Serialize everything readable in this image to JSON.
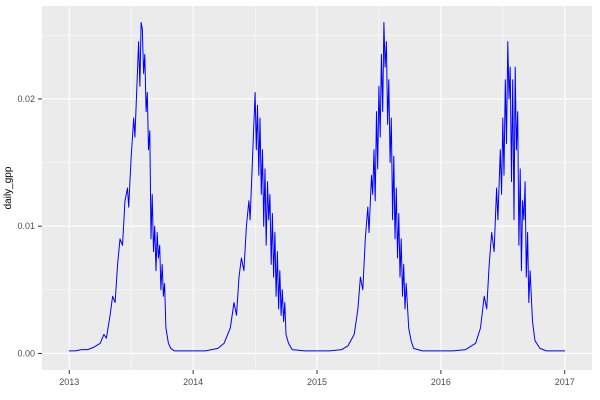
{
  "chart_data": {
    "type": "line",
    "title": "",
    "xlabel": "",
    "ylabel": "daily_gpp",
    "legend": "none",
    "grid": "on",
    "panel_bg": "#EBEBEB",
    "grid_color": "#FFFFFF",
    "line_color": "#0000FF",
    "tick_color": "#333333",
    "tick_label_color": "#4D4D4D",
    "xlim": [
      2012.78,
      2017.22
    ],
    "ylim": [
      -0.0013,
      0.0273
    ],
    "x_ticks": [
      2013,
      2014,
      2015,
      2016,
      2017
    ],
    "x_tick_labels": [
      "2013",
      "2014",
      "2015",
      "2016",
      "2017"
    ],
    "x_minor_ticks": [
      2013.5,
      2014.5,
      2015.5,
      2016.5
    ],
    "y_ticks": [
      0.0,
      0.01,
      0.02
    ],
    "y_tick_labels": [
      "0.00",
      "0.01",
      "0.02"
    ],
    "y_minor_ticks": [
      0.005,
      0.015,
      0.025
    ],
    "series": [
      {
        "name": "daily_gpp",
        "points": [
          [
            2013.0,
            0.0002
          ],
          [
            2013.05,
            0.0002
          ],
          [
            2013.1,
            0.0003
          ],
          [
            2013.15,
            0.0003
          ],
          [
            2013.2,
            0.0005
          ],
          [
            2013.25,
            0.0008
          ],
          [
            2013.28,
            0.0015
          ],
          [
            2013.3,
            0.0012
          ],
          [
            2013.33,
            0.003
          ],
          [
            2013.35,
            0.0045
          ],
          [
            2013.37,
            0.004
          ],
          [
            2013.39,
            0.007
          ],
          [
            2013.41,
            0.009
          ],
          [
            2013.43,
            0.0085
          ],
          [
            2013.45,
            0.012
          ],
          [
            2013.47,
            0.013
          ],
          [
            2013.48,
            0.0115
          ],
          [
            2013.5,
            0.0155
          ],
          [
            2013.52,
            0.0185
          ],
          [
            2013.53,
            0.017
          ],
          [
            2013.55,
            0.022
          ],
          [
            2013.56,
            0.0245
          ],
          [
            2013.57,
            0.021
          ],
          [
            2013.58,
            0.026
          ],
          [
            2013.59,
            0.0255
          ],
          [
            2013.6,
            0.022
          ],
          [
            2013.61,
            0.0235
          ],
          [
            2013.62,
            0.019
          ],
          [
            2013.63,
            0.0205
          ],
          [
            2013.64,
            0.016
          ],
          [
            2013.65,
            0.0175
          ],
          [
            2013.66,
            0.009
          ],
          [
            2013.67,
            0.0125
          ],
          [
            2013.68,
            0.008
          ],
          [
            2013.69,
            0.01
          ],
          [
            2013.7,
            0.0065
          ],
          [
            2013.71,
            0.0095
          ],
          [
            2013.72,
            0.0075
          ],
          [
            2013.73,
            0.0085
          ],
          [
            2013.74,
            0.005
          ],
          [
            2013.75,
            0.007
          ],
          [
            2013.76,
            0.0045
          ],
          [
            2013.77,
            0.0055
          ],
          [
            2013.78,
            0.002
          ],
          [
            2013.8,
            0.0008
          ],
          [
            2013.82,
            0.0004
          ],
          [
            2013.85,
            0.0002
          ],
          [
            2013.9,
            0.0002
          ],
          [
            2013.95,
            0.0002
          ],
          [
            2014.0,
            0.0002
          ],
          [
            2014.1,
            0.0002
          ],
          [
            2014.2,
            0.0004
          ],
          [
            2014.25,
            0.0008
          ],
          [
            2014.3,
            0.002
          ],
          [
            2014.33,
            0.004
          ],
          [
            2014.35,
            0.003
          ],
          [
            2014.37,
            0.006
          ],
          [
            2014.39,
            0.0075
          ],
          [
            2014.41,
            0.0065
          ],
          [
            2014.43,
            0.01
          ],
          [
            2014.45,
            0.012
          ],
          [
            2014.46,
            0.0105
          ],
          [
            2014.48,
            0.0155
          ],
          [
            2014.5,
            0.0205
          ],
          [
            2014.51,
            0.016
          ],
          [
            2014.52,
            0.0195
          ],
          [
            2014.53,
            0.014
          ],
          [
            2014.54,
            0.0185
          ],
          [
            2014.55,
            0.0125
          ],
          [
            2014.56,
            0.016
          ],
          [
            2014.57,
            0.01
          ],
          [
            2014.58,
            0.0145
          ],
          [
            2014.59,
            0.0085
          ],
          [
            2014.6,
            0.0135
          ],
          [
            2014.61,
            0.0105
          ],
          [
            2014.62,
            0.0125
          ],
          [
            2014.63,
            0.007
          ],
          [
            2014.64,
            0.011
          ],
          [
            2014.65,
            0.006
          ],
          [
            2014.66,
            0.0095
          ],
          [
            2014.67,
            0.0045
          ],
          [
            2014.68,
            0.008
          ],
          [
            2014.69,
            0.0035
          ],
          [
            2014.7,
            0.0065
          ],
          [
            2014.71,
            0.003
          ],
          [
            2014.72,
            0.005
          ],
          [
            2014.73,
            0.0025
          ],
          [
            2014.74,
            0.004
          ],
          [
            2014.75,
            0.0015
          ],
          [
            2014.77,
            0.0008
          ],
          [
            2014.8,
            0.0003
          ],
          [
            2014.9,
            0.0002
          ],
          [
            2015.0,
            0.0002
          ],
          [
            2015.1,
            0.0002
          ],
          [
            2015.2,
            0.0003
          ],
          [
            2015.25,
            0.0006
          ],
          [
            2015.3,
            0.0015
          ],
          [
            2015.33,
            0.0035
          ],
          [
            2015.35,
            0.006
          ],
          [
            2015.37,
            0.005
          ],
          [
            2015.39,
            0.009
          ],
          [
            2015.41,
            0.0115
          ],
          [
            2015.42,
            0.0095
          ],
          [
            2015.44,
            0.014
          ],
          [
            2015.45,
            0.0125
          ],
          [
            2015.46,
            0.016
          ],
          [
            2015.47,
            0.012
          ],
          [
            2015.48,
            0.019
          ],
          [
            2015.49,
            0.0145
          ],
          [
            2015.5,
            0.021
          ],
          [
            2015.51,
            0.017
          ],
          [
            2015.52,
            0.0235
          ],
          [
            2015.53,
            0.019
          ],
          [
            2015.54,
            0.026
          ],
          [
            2015.55,
            0.0225
          ],
          [
            2015.56,
            0.0245
          ],
          [
            2015.57,
            0.018
          ],
          [
            2015.58,
            0.0215
          ],
          [
            2015.59,
            0.015
          ],
          [
            2015.6,
            0.0185
          ],
          [
            2015.61,
            0.0105
          ],
          [
            2015.62,
            0.0155
          ],
          [
            2015.63,
            0.009
          ],
          [
            2015.64,
            0.013
          ],
          [
            2015.65,
            0.0075
          ],
          [
            2015.66,
            0.011
          ],
          [
            2015.67,
            0.006
          ],
          [
            2015.68,
            0.009
          ],
          [
            2015.69,
            0.0045
          ],
          [
            2015.7,
            0.007
          ],
          [
            2015.71,
            0.0035
          ],
          [
            2015.72,
            0.0055
          ],
          [
            2015.74,
            0.002
          ],
          [
            2015.76,
            0.001
          ],
          [
            2015.78,
            0.0004
          ],
          [
            2015.85,
            0.0002
          ],
          [
            2015.95,
            0.0002
          ],
          [
            2016.0,
            0.0002
          ],
          [
            2016.1,
            0.0002
          ],
          [
            2016.2,
            0.0003
          ],
          [
            2016.28,
            0.0008
          ],
          [
            2016.32,
            0.002
          ],
          [
            2016.35,
            0.0045
          ],
          [
            2016.37,
            0.0035
          ],
          [
            2016.39,
            0.007
          ],
          [
            2016.41,
            0.0095
          ],
          [
            2016.43,
            0.008
          ],
          [
            2016.45,
            0.013
          ],
          [
            2016.46,
            0.0105
          ],
          [
            2016.48,
            0.016
          ],
          [
            2016.49,
            0.0125
          ],
          [
            2016.5,
            0.0185
          ],
          [
            2016.51,
            0.014
          ],
          [
            2016.52,
            0.0215
          ],
          [
            2016.53,
            0.0165
          ],
          [
            2016.54,
            0.0245
          ],
          [
            2016.55,
            0.02
          ],
          [
            2016.56,
            0.0225
          ],
          [
            2016.57,
            0.0135
          ],
          [
            2016.58,
            0.0215
          ],
          [
            2016.59,
            0.0105
          ],
          [
            2016.6,
            0.0225
          ],
          [
            2016.61,
            0.016
          ],
          [
            2016.62,
            0.019
          ],
          [
            2016.63,
            0.0085
          ],
          [
            2016.64,
            0.0145
          ],
          [
            2016.65,
            0.0065
          ],
          [
            2016.66,
            0.012
          ],
          [
            2016.67,
            0.0105
          ],
          [
            2016.68,
            0.0135
          ],
          [
            2016.69,
            0.006
          ],
          [
            2016.7,
            0.0095
          ],
          [
            2016.71,
            0.004
          ],
          [
            2016.72,
            0.0065
          ],
          [
            2016.74,
            0.0025
          ],
          [
            2016.76,
            0.001
          ],
          [
            2016.8,
            0.0004
          ],
          [
            2016.85,
            0.0002
          ],
          [
            2016.92,
            0.0002
          ],
          [
            2017.0,
            0.0002
          ]
        ]
      }
    ]
  }
}
